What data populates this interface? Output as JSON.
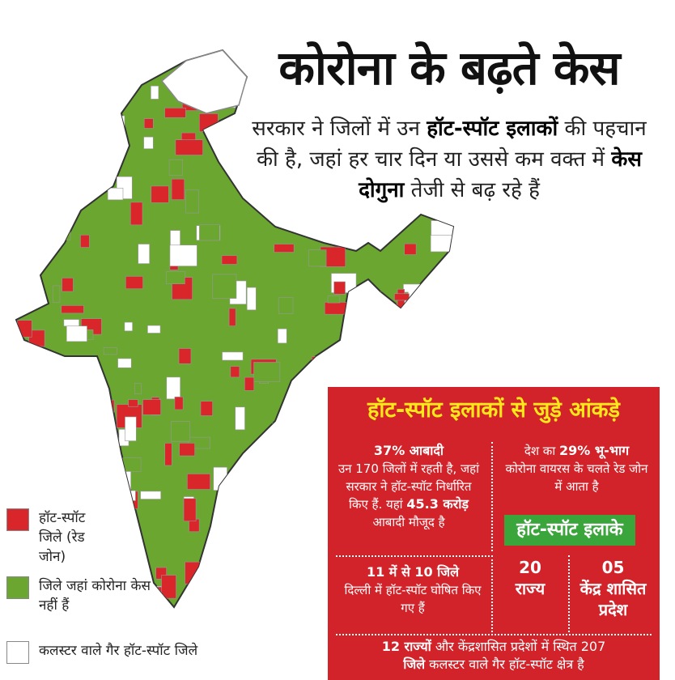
{
  "header": {
    "title": "कोरोना के बढ़ते केस",
    "subtitle_parts": [
      "सरकार ने जिलों में उन ",
      "हॉट-स्पॉट इलाकों",
      " की पहचान की है, जहां हर चार दिन या उससे कम वक्त में ",
      "केस दोगुना",
      " तेजी से बढ़ रहे हैं"
    ]
  },
  "colors": {
    "red_zone": "#d9262b",
    "green_zone": "#6aa630",
    "white_zone": "#ffffff",
    "panel": "#d2232a",
    "panel_title": "#ffe81a",
    "badge": "#3aa53a"
  },
  "legend": [
    {
      "label": "हॉट-स्पॉट जिले (रेड जोन)"
    },
    {
      "label": "जिले जहां कोरोना केस नहीं हैं"
    },
    {
      "label": "कलस्टर वाले गैर हॉट-स्पॉट जिले"
    }
  ],
  "panel": {
    "title": "हॉट-स्पॉट इलाकों से जुड़े आंकड़े",
    "population_head": "37% आबादी",
    "population_text": "उन 170 जिलों में रहती है, जहां सरकार ने हॉट-स्पॉट निर्धारित किए हैं. यहां",
    "population_num": "45.3 करोड़",
    "population_tail": "आबादी मौजूद है",
    "area_pre": "देश का",
    "area_head": "29% भू-भाग",
    "area_text": "कोरोना वायरस के चलते रेड जोन में आता है",
    "badge": "हॉट-स्पॉट इलाके",
    "delhi_head": "11 में से 10 जिले",
    "delhi_text": "दिल्ली में हॉट-स्पॉट घोषित किए गए हैं",
    "states_num": "20",
    "states_label": "राज्य",
    "ut_num": "05",
    "ut_label": "केंद्र शासित प्रदेश",
    "footer_head": "12 राज्यों",
    "footer_mid": "और केंद्रशासित प्रदेशों में स्थित 207",
    "footer_head2": "जिले",
    "footer_tail": "कलस्टर वाले गैर हॉट-स्पॉट क्षेत्र है"
  }
}
